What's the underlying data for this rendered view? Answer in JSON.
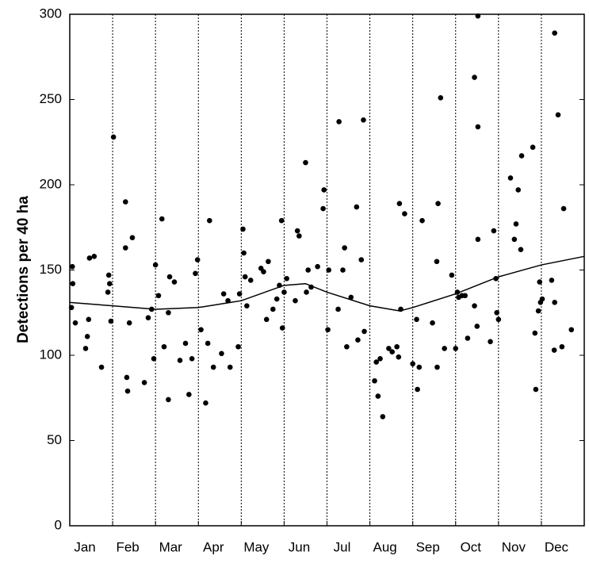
{
  "chart_data": {
    "type": "scatter",
    "ylabel": "Detections per 40 ha",
    "categories": [
      "Jan",
      "Feb",
      "Mar",
      "Apr",
      "May",
      "Jun",
      "Jul",
      "Aug",
      "Sep",
      "Oct",
      "Nov",
      "Dec"
    ],
    "xlim": [
      0,
      12
    ],
    "ylim": [
      0,
      300
    ],
    "yticks": [
      0,
      50,
      100,
      150,
      200,
      250,
      300
    ],
    "series": [
      {
        "type": "scatter",
        "color": "#000000",
        "x": [
          0.04,
          0.07,
          0.06,
          0.13,
          0.37,
          0.41,
          0.44,
          0.46,
          0.57,
          0.74,
          0.89,
          0.91,
          0.93,
          0.96,
          1.02,
          1.3,
          1.3,
          1.33,
          1.35,
          1.39,
          1.46,
          1.74,
          1.83,
          1.91,
          1.96,
          2.0,
          2.07,
          2.15,
          2.2,
          2.3,
          2.33,
          2.44,
          2.3,
          2.57,
          2.7,
          2.78,
          2.85,
          2.93,
          2.98,
          3.06,
          3.17,
          3.22,
          3.26,
          3.35,
          3.54,
          3.59,
          3.69,
          3.74,
          3.93,
          3.96,
          4.04,
          4.06,
          4.09,
          4.13,
          4.22,
          4.46,
          4.52,
          4.63,
          4.59,
          4.74,
          4.83,
          4.89,
          4.94,
          4.96,
          5.0,
          5.06,
          5.26,
          5.31,
          5.35,
          5.52,
          5.56,
          5.5,
          5.63,
          5.78,
          5.91,
          5.93,
          6.02,
          6.04,
          6.26,
          6.28,
          6.37,
          6.41,
          6.46,
          6.56,
          6.69,
          6.72,
          6.8,
          6.87,
          6.85,
          7.11,
          7.15,
          7.19,
          7.24,
          7.3,
          7.44,
          7.52,
          7.63,
          7.67,
          7.69,
          7.81,
          7.72,
          8.0,
          8.09,
          8.15,
          8.22,
          8.11,
          8.46,
          8.57,
          8.59,
          8.56,
          8.65,
          8.74,
          8.91,
          9.0,
          9.04,
          9.07,
          9.15,
          9.22,
          9.28,
          9.44,
          9.44,
          9.5,
          9.52,
          9.52,
          9.52,
          9.81,
          9.89,
          9.94,
          9.96,
          10.0,
          10.28,
          10.37,
          10.41,
          10.46,
          10.52,
          10.54,
          10.8,
          10.85,
          10.87,
          10.93,
          10.98,
          10.96,
          11.02,
          11.24,
          11.3,
          11.31,
          11.31,
          11.39,
          11.48,
          11.52,
          11.7
        ],
        "values": [
          128,
          142,
          152,
          119,
          104,
          111,
          121,
          157,
          158,
          93,
          137,
          147,
          142,
          120,
          228,
          190,
          163,
          87,
          79,
          119,
          169,
          84,
          122,
          127,
          98,
          153,
          135,
          180,
          105,
          125,
          146,
          143,
          74,
          97,
          107,
          77,
          98,
          148,
          156,
          115,
          72,
          107,
          179,
          93,
          101,
          136,
          132,
          93,
          105,
          136,
          174,
          160,
          146,
          129,
          144,
          151,
          149,
          155,
          121,
          127,
          133,
          141,
          179,
          116,
          137,
          145,
          132,
          173,
          170,
          137,
          150,
          213,
          140,
          152,
          186,
          197,
          115,
          150,
          127,
          237,
          150,
          163,
          105,
          134,
          187,
          109,
          156,
          114,
          238,
          85,
          96,
          76,
          98,
          64,
          104,
          102,
          105,
          99,
          189,
          183,
          127,
          95,
          121,
          93,
          179,
          80,
          119,
          93,
          189,
          155,
          251,
          104,
          147,
          104,
          137,
          134,
          135,
          135,
          110,
          129,
          263,
          117,
          234,
          168,
          299,
          108,
          173,
          145,
          125,
          121,
          204,
          168,
          177,
          197,
          162,
          217,
          222,
          113,
          80,
          126,
          131,
          143,
          133,
          144,
          103,
          131,
          289,
          241,
          105,
          186,
          115
        ]
      },
      {
        "type": "line",
        "color": "#000000",
        "x": [
          0,
          1,
          2,
          3,
          4,
          5,
          5.5,
          6,
          7,
          7.7,
          8,
          9,
          10,
          11,
          12
        ],
        "values": [
          131,
          129,
          127,
          128,
          132,
          141,
          142,
          137,
          129,
          126,
          128,
          136,
          146,
          153,
          158
        ]
      }
    ]
  }
}
